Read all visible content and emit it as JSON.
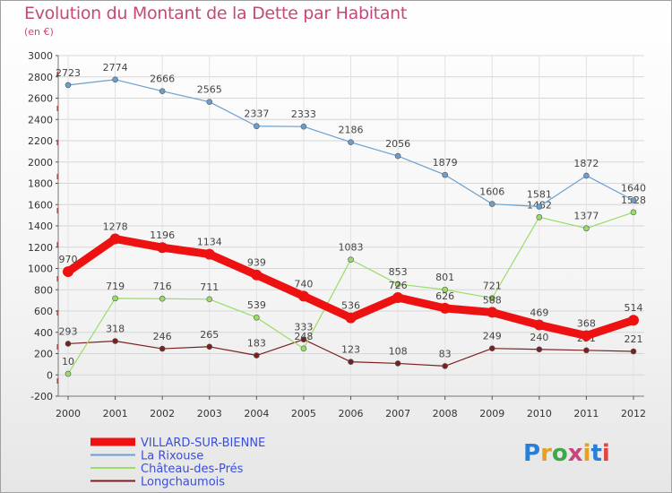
{
  "header": {
    "title": "Evolution du Montant de la Dette par Habitant",
    "subtitle": "(en €)"
  },
  "logo": {
    "text": "Proxiti",
    "colors": [
      "#2a7fd4",
      "#e8a020",
      "#3ea94a",
      "#c8467a",
      "#e8a020",
      "#2a7fd4",
      "#e84040"
    ]
  },
  "chart_data": {
    "type": "line",
    "title": "Evolution du Montant de la Dette par Habitant",
    "subtitle": "(en €)",
    "xlabel": "",
    "ylabel": "",
    "x": [
      "2000",
      "2001",
      "2002",
      "2003",
      "2004",
      "2005",
      "2006",
      "2007",
      "2008",
      "2009",
      "2010",
      "2011",
      "2012"
    ],
    "ylim": [
      -200,
      3000
    ],
    "yticks": [
      "-200",
      "0",
      "200",
      "400",
      "600",
      "800",
      "1000",
      "1200",
      "1400",
      "1600",
      "1800",
      "2000",
      "2200",
      "2400",
      "2600",
      "2800",
      "3000"
    ],
    "grid": true,
    "legend_position": "bottom-left",
    "series": [
      {
        "name": "VILLARD-SUR-BIENNE",
        "color": "#ee1111",
        "values": [
          970,
          1278,
          1196,
          1134,
          939,
          740,
          536,
          726,
          626,
          588,
          469,
          368,
          514
        ],
        "labels": [
          "970",
          "1278",
          "1196",
          "1134",
          "939",
          "740",
          "536",
          "726",
          "626",
          "588",
          "469",
          "368",
          "514"
        ]
      },
      {
        "name": "La Rixouse",
        "color": "#6a9fcf",
        "values": [
          2723,
          2774,
          2666,
          2565,
          2337,
          2333,
          2186,
          2056,
          1879,
          1606,
          1581,
          1872,
          1640
        ],
        "labels": [
          "2723",
          "2774",
          "2666",
          "2565",
          "2337",
          "2333",
          "2186",
          "2056",
          "1879",
          "1606",
          "1581",
          "1872",
          "1640"
        ]
      },
      {
        "name": "Château-des-Prés",
        "color": "#99dd66",
        "values": [
          10,
          719,
          716,
          711,
          539,
          248,
          1083,
          853,
          801,
          721,
          1482,
          1377,
          1528
        ],
        "labels": [
          "10",
          "719",
          "716",
          "711",
          "539",
          "248",
          "1083",
          "853",
          "801",
          "721",
          "1482",
          "1377",
          "1528"
        ]
      },
      {
        "name": "Longchaumois",
        "color": "#7a2020",
        "values": [
          293,
          318,
          246,
          265,
          183,
          333,
          123,
          108,
          83,
          249,
          240,
          231,
          221
        ],
        "labels": [
          "293",
          "318",
          "246",
          "265",
          "183",
          "333",
          "123",
          "108",
          "83",
          "249",
          "240",
          "231",
          "221"
        ]
      }
    ]
  }
}
